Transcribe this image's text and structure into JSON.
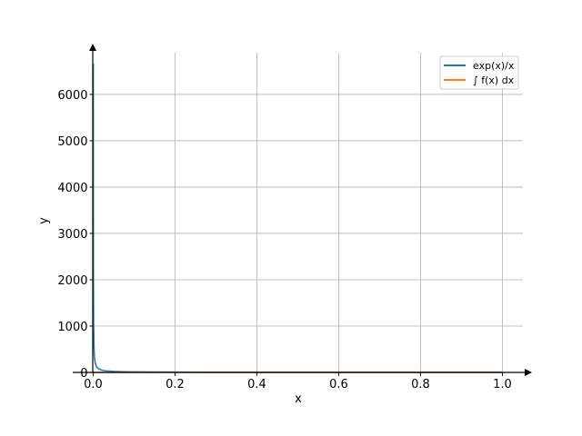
{
  "chart_data": {
    "type": "line",
    "title": "",
    "xlabel": "x",
    "ylabel": "y",
    "xlim": [
      -0.05,
      1.05
    ],
    "ylim": [
      0,
      6900
    ],
    "xticks": [
      0.0,
      0.2,
      0.4,
      0.6,
      0.8,
      1.0
    ],
    "xtick_labels": [
      "0.0",
      "0.2",
      "0.4",
      "0.6",
      "0.8",
      "1.0"
    ],
    "yticks": [
      0,
      1000,
      2000,
      3000,
      4000,
      5000,
      6000
    ],
    "ytick_labels": [
      "0",
      "1000",
      "2000",
      "3000",
      "4000",
      "5000",
      "6000"
    ],
    "grid": true,
    "legend_position": "top-right",
    "series": [
      {
        "name": "exp(x)/x",
        "color": "#1f77b4",
        "x": [
          0.00015,
          0.0002,
          0.0003,
          0.0005,
          0.001,
          0.002,
          0.003,
          0.005,
          0.0075,
          0.01,
          0.015,
          0.02,
          0.03,
          0.05,
          0.075,
          0.1,
          0.15,
          0.2,
          0.3,
          0.4,
          0.5,
          0.6,
          0.7,
          0.8,
          0.9,
          1.0
        ],
        "y": [
          6668,
          5001,
          3334,
          2001,
          1001,
          501,
          334,
          201,
          134,
          101,
          68,
          51,
          34.5,
          21,
          14.4,
          11.1,
          7.8,
          6.1,
          4.5,
          3.7,
          3.3,
          3.0,
          2.9,
          2.8,
          2.7,
          2.7
        ]
      },
      {
        "name": "∫ f(x) dx",
        "color": "#ff7f0e",
        "x": [
          0.0,
          0.1,
          0.2,
          0.3,
          0.4,
          0.5,
          0.6,
          0.7,
          0.8,
          0.9,
          1.0
        ],
        "y": [
          0,
          0,
          0,
          0,
          0,
          0,
          0,
          0,
          0,
          0,
          0
        ]
      }
    ]
  }
}
